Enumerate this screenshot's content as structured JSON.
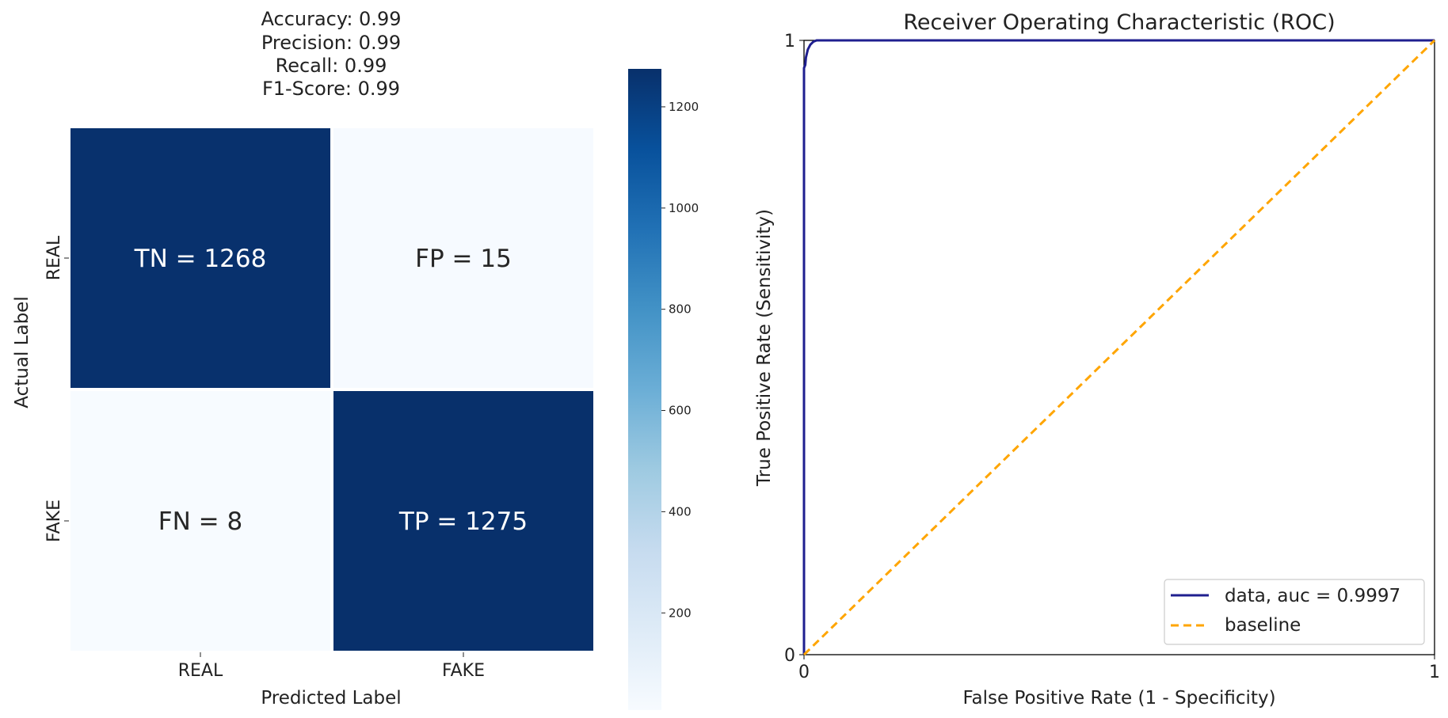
{
  "metrics": {
    "accuracy": "Accuracy: 0.99",
    "precision": "Precision: 0.99",
    "recall": "Recall: 0.99",
    "f1": "F1-Score: 0.99"
  },
  "colors": {
    "dark_blue": "#08306b",
    "light_blue": "#f7fbff",
    "roc_line": "#1f1f8f",
    "baseline": "#ffa500"
  },
  "chart_data": [
    {
      "type": "heatmap",
      "title": "",
      "xlabel": "Predicted Label",
      "ylabel": "Actual Label",
      "x_categories": [
        "REAL",
        "FAKE"
      ],
      "y_categories": [
        "REAL",
        "FAKE"
      ],
      "cells": [
        {
          "row": 0,
          "col": 0,
          "name": "TN",
          "value": 1268,
          "label": "TN = 1268"
        },
        {
          "row": 0,
          "col": 1,
          "name": "FP",
          "value": 15,
          "label": "FP = 15"
        },
        {
          "row": 1,
          "col": 0,
          "name": "FN",
          "value": 8,
          "label": "FN = 8"
        },
        {
          "row": 1,
          "col": 1,
          "name": "TP",
          "value": 1275,
          "label": "TP = 1275"
        }
      ],
      "colorbar": {
        "min": 8,
        "max": 1275,
        "ticks": [
          200,
          400,
          600,
          800,
          1000,
          1200
        ],
        "colormap": "Blues"
      }
    },
    {
      "type": "line",
      "title": "Receiver Operating Characteristic (ROC)",
      "xlabel": "False Positive Rate (1 - Specificity)",
      "ylabel": "True Positive Rate (Sensitivity)",
      "xlim": [
        0,
        1
      ],
      "ylim": [
        0,
        1
      ],
      "x_ticks": [
        "0",
        "1"
      ],
      "y_ticks": [
        "0",
        "1"
      ],
      "legend_position": "lower-right",
      "series": [
        {
          "name": "data, auc = 0.9997",
          "style": "solid",
          "color": "#1f1f8f",
          "points": [
            [
              0,
              0
            ],
            [
              0,
              0.93
            ],
            [
              0,
              0.955
            ],
            [
              0.002,
              0.96
            ],
            [
              0.003,
              0.972
            ],
            [
              0.006,
              0.985
            ],
            [
              0.01,
              0.993
            ],
            [
              0.015,
              0.998
            ],
            [
              0.02,
              1
            ],
            [
              1,
              1
            ]
          ]
        },
        {
          "name": "baseline",
          "style": "dashed",
          "color": "#ffa500",
          "points": [
            [
              0,
              0
            ],
            [
              1,
              1
            ]
          ]
        }
      ]
    }
  ]
}
